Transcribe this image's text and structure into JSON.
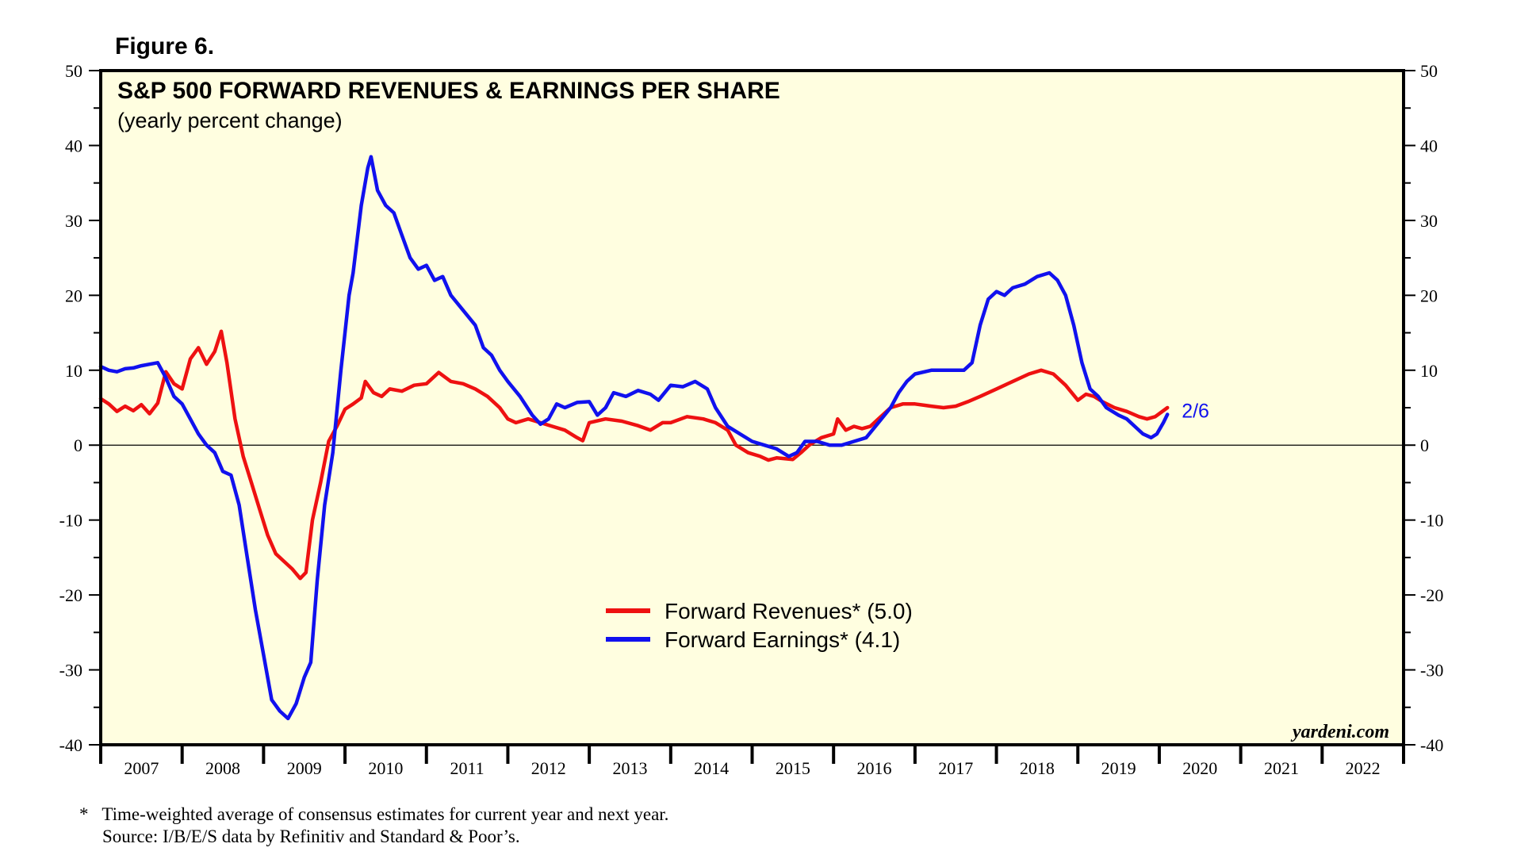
{
  "figure_label": "Figure 6.",
  "chart_data": {
    "type": "line",
    "title": "S&P 500 FORWARD REVENUES & EARNINGS PER SHARE",
    "subtitle": "(yearly percent change)",
    "xlabel": "",
    "ylabel": "",
    "xlim": [
      2007,
      2023
    ],
    "ylim": [
      -40,
      50
    ],
    "yticks": [
      -40,
      -30,
      -20,
      -10,
      0,
      10,
      20,
      30,
      40,
      50
    ],
    "ytick_labels": [
      "-40",
      "-30",
      "-20",
      "-10",
      "0",
      "10",
      "20",
      "30",
      "40",
      "50"
    ],
    "year_labels": [
      "2007",
      "2008",
      "2009",
      "2010",
      "2011",
      "2012",
      "2013",
      "2014",
      "2015",
      "2016",
      "2017",
      "2018",
      "2019",
      "2020",
      "2021",
      "2022"
    ],
    "grid": false,
    "zero_line": true,
    "background_color": "#fffee0",
    "legend_position": "lower-center",
    "series": [
      {
        "name": "Forward Revenues* (5.0)",
        "color": "#ee1111",
        "points": [
          [
            2007.0,
            6.2
          ],
          [
            2007.1,
            5.5
          ],
          [
            2007.2,
            4.5
          ],
          [
            2007.3,
            5.2
          ],
          [
            2007.4,
            4.6
          ],
          [
            2007.5,
            5.4
          ],
          [
            2007.6,
            4.2
          ],
          [
            2007.7,
            5.6
          ],
          [
            2007.8,
            9.8
          ],
          [
            2007.9,
            8.2
          ],
          [
            2008.0,
            7.5
          ],
          [
            2008.1,
            11.5
          ],
          [
            2008.2,
            13.0
          ],
          [
            2008.3,
            10.8
          ],
          [
            2008.4,
            12.5
          ],
          [
            2008.48,
            15.2
          ],
          [
            2008.55,
            11.0
          ],
          [
            2008.65,
            3.5
          ],
          [
            2008.75,
            -1.5
          ],
          [
            2008.85,
            -5.0
          ],
          [
            2008.95,
            -8.5
          ],
          [
            2009.05,
            -12.0
          ],
          [
            2009.15,
            -14.5
          ],
          [
            2009.25,
            -15.5
          ],
          [
            2009.35,
            -16.5
          ],
          [
            2009.45,
            -17.8
          ],
          [
            2009.52,
            -17.0
          ],
          [
            2009.6,
            -10.0
          ],
          [
            2009.7,
            -5.0
          ],
          [
            2009.8,
            0.5
          ],
          [
            2009.9,
            2.5
          ],
          [
            2010.0,
            4.8
          ],
          [
            2010.1,
            5.5
          ],
          [
            2010.2,
            6.3
          ],
          [
            2010.25,
            8.5
          ],
          [
            2010.35,
            7.0
          ],
          [
            2010.45,
            6.5
          ],
          [
            2010.55,
            7.5
          ],
          [
            2010.7,
            7.2
          ],
          [
            2010.85,
            8.0
          ],
          [
            2011.0,
            8.2
          ],
          [
            2011.15,
            9.7
          ],
          [
            2011.3,
            8.5
          ],
          [
            2011.45,
            8.2
          ],
          [
            2011.6,
            7.5
          ],
          [
            2011.75,
            6.5
          ],
          [
            2011.9,
            5.0
          ],
          [
            2012.0,
            3.5
          ],
          [
            2012.1,
            3.0
          ],
          [
            2012.25,
            3.5
          ],
          [
            2012.4,
            3.0
          ],
          [
            2012.55,
            2.5
          ],
          [
            2012.7,
            2.0
          ],
          [
            2012.85,
            1.0
          ],
          [
            2012.92,
            0.6
          ],
          [
            2013.0,
            3.0
          ],
          [
            2013.2,
            3.5
          ],
          [
            2013.4,
            3.2
          ],
          [
            2013.6,
            2.6
          ],
          [
            2013.75,
            2.0
          ],
          [
            2013.9,
            3.0
          ],
          [
            2014.0,
            3.0
          ],
          [
            2014.2,
            3.8
          ],
          [
            2014.4,
            3.5
          ],
          [
            2014.55,
            3.0
          ],
          [
            2014.7,
            2.0
          ],
          [
            2014.8,
            0.0
          ],
          [
            2014.95,
            -1.0
          ],
          [
            2015.1,
            -1.5
          ],
          [
            2015.2,
            -2.0
          ],
          [
            2015.3,
            -1.7
          ],
          [
            2015.4,
            -1.8
          ],
          [
            2015.5,
            -1.9
          ],
          [
            2015.6,
            -1.0
          ],
          [
            2015.7,
            0.0
          ],
          [
            2015.85,
            1.0
          ],
          [
            2016.0,
            1.5
          ],
          [
            2016.05,
            3.5
          ],
          [
            2016.15,
            2.0
          ],
          [
            2016.25,
            2.5
          ],
          [
            2016.35,
            2.2
          ],
          [
            2016.45,
            2.5
          ],
          [
            2016.55,
            3.5
          ],
          [
            2016.7,
            5.0
          ],
          [
            2016.85,
            5.5
          ],
          [
            2017.0,
            5.5
          ],
          [
            2017.2,
            5.2
          ],
          [
            2017.35,
            5.0
          ],
          [
            2017.5,
            5.2
          ],
          [
            2017.65,
            5.8
          ],
          [
            2017.8,
            6.5
          ],
          [
            2018.0,
            7.5
          ],
          [
            2018.2,
            8.5
          ],
          [
            2018.4,
            9.5
          ],
          [
            2018.55,
            10.0
          ],
          [
            2018.7,
            9.5
          ],
          [
            2018.85,
            8.0
          ],
          [
            2019.0,
            6.0
          ],
          [
            2019.1,
            6.8
          ],
          [
            2019.2,
            6.5
          ],
          [
            2019.3,
            5.8
          ],
          [
            2019.45,
            5.0
          ],
          [
            2019.6,
            4.5
          ],
          [
            2019.75,
            3.8
          ],
          [
            2019.85,
            3.5
          ],
          [
            2019.95,
            3.8
          ],
          [
            2020.1,
            5.0
          ]
        ]
      },
      {
        "name": "Forward Earnings* (4.1)",
        "color": "#1111ee",
        "points": [
          [
            2007.0,
            10.5
          ],
          [
            2007.1,
            10.0
          ],
          [
            2007.2,
            9.8
          ],
          [
            2007.3,
            10.2
          ],
          [
            2007.4,
            10.3
          ],
          [
            2007.5,
            10.6
          ],
          [
            2007.6,
            10.8
          ],
          [
            2007.7,
            11.0
          ],
          [
            2007.8,
            9.0
          ],
          [
            2007.9,
            6.5
          ],
          [
            2008.0,
            5.5
          ],
          [
            2008.1,
            3.5
          ],
          [
            2008.2,
            1.5
          ],
          [
            2008.3,
            0.0
          ],
          [
            2008.4,
            -1.0
          ],
          [
            2008.5,
            -3.5
          ],
          [
            2008.6,
            -4.0
          ],
          [
            2008.7,
            -8.0
          ],
          [
            2008.8,
            -15.0
          ],
          [
            2008.9,
            -22.0
          ],
          [
            2009.0,
            -28.0
          ],
          [
            2009.1,
            -34.0
          ],
          [
            2009.2,
            -35.5
          ],
          [
            2009.3,
            -36.5
          ],
          [
            2009.4,
            -34.5
          ],
          [
            2009.5,
            -31.0
          ],
          [
            2009.58,
            -29.0
          ],
          [
            2009.66,
            -18.0
          ],
          [
            2009.75,
            -8.0
          ],
          [
            2009.85,
            -1.0
          ],
          [
            2009.95,
            10.0
          ],
          [
            2010.05,
            20.0
          ],
          [
            2010.1,
            23.0
          ],
          [
            2010.2,
            32.0
          ],
          [
            2010.28,
            37.0
          ],
          [
            2010.32,
            38.5
          ],
          [
            2010.4,
            34.0
          ],
          [
            2010.5,
            32.0
          ],
          [
            2010.6,
            31.0
          ],
          [
            2010.7,
            28.0
          ],
          [
            2010.8,
            25.0
          ],
          [
            2010.9,
            23.5
          ],
          [
            2011.0,
            24.0
          ],
          [
            2011.1,
            22.0
          ],
          [
            2011.2,
            22.5
          ],
          [
            2011.3,
            20.0
          ],
          [
            2011.45,
            18.0
          ],
          [
            2011.6,
            16.0
          ],
          [
            2011.7,
            13.0
          ],
          [
            2011.8,
            12.0
          ],
          [
            2011.9,
            10.0
          ],
          [
            2012.0,
            8.5
          ],
          [
            2012.15,
            6.5
          ],
          [
            2012.3,
            4.0
          ],
          [
            2012.4,
            2.8
          ],
          [
            2012.5,
            3.5
          ],
          [
            2012.6,
            5.5
          ],
          [
            2012.7,
            5.0
          ],
          [
            2012.85,
            5.7
          ],
          [
            2013.0,
            5.8
          ],
          [
            2013.1,
            4.0
          ],
          [
            2013.2,
            5.0
          ],
          [
            2013.3,
            7.0
          ],
          [
            2013.45,
            6.5
          ],
          [
            2013.6,
            7.3
          ],
          [
            2013.75,
            6.8
          ],
          [
            2013.85,
            6.0
          ],
          [
            2014.0,
            8.0
          ],
          [
            2014.15,
            7.8
          ],
          [
            2014.3,
            8.5
          ],
          [
            2014.45,
            7.5
          ],
          [
            2014.55,
            5.0
          ],
          [
            2014.7,
            2.5
          ],
          [
            2014.85,
            1.5
          ],
          [
            2015.0,
            0.5
          ],
          [
            2015.15,
            0.0
          ],
          [
            2015.3,
            -0.5
          ],
          [
            2015.45,
            -1.5
          ],
          [
            2015.55,
            -1.0
          ],
          [
            2015.65,
            0.5
          ],
          [
            2015.8,
            0.5
          ],
          [
            2015.95,
            0.0
          ],
          [
            2016.1,
            0.0
          ],
          [
            2016.25,
            0.5
          ],
          [
            2016.4,
            1.0
          ],
          [
            2016.55,
            3.0
          ],
          [
            2016.7,
            5.0
          ],
          [
            2016.8,
            7.0
          ],
          [
            2016.9,
            8.5
          ],
          [
            2017.0,
            9.5
          ],
          [
            2017.2,
            10.0
          ],
          [
            2017.4,
            10.0
          ],
          [
            2017.6,
            10.0
          ],
          [
            2017.7,
            11.0
          ],
          [
            2017.8,
            16.0
          ],
          [
            2017.9,
            19.5
          ],
          [
            2018.0,
            20.5
          ],
          [
            2018.1,
            20.0
          ],
          [
            2018.2,
            21.0
          ],
          [
            2018.35,
            21.5
          ],
          [
            2018.5,
            22.5
          ],
          [
            2018.65,
            23.0
          ],
          [
            2018.75,
            22.0
          ],
          [
            2018.85,
            20.0
          ],
          [
            2018.95,
            16.0
          ],
          [
            2019.05,
            11.0
          ],
          [
            2019.15,
            7.5
          ],
          [
            2019.25,
            6.5
          ],
          [
            2019.35,
            5.0
          ],
          [
            2019.5,
            4.0
          ],
          [
            2019.6,
            3.5
          ],
          [
            2019.7,
            2.5
          ],
          [
            2019.8,
            1.5
          ],
          [
            2019.9,
            1.0
          ],
          [
            2019.97,
            1.5
          ],
          [
            2020.05,
            3.0
          ],
          [
            2020.1,
            4.1
          ]
        ]
      }
    ],
    "annotations": [
      {
        "text": "2/6",
        "x": 2020.1,
        "y": 4.1,
        "color": "#1111ee"
      }
    ],
    "source_mark": "yardeni.com"
  },
  "legend": [
    {
      "label": "Forward Revenues* (5.0)",
      "color": "#ee1111"
    },
    {
      "label": "Forward Earnings* (4.1)",
      "color": "#1111ee"
    }
  ],
  "footnotes": {
    "note": "*   Time-weighted average of consensus estimates for current year and next year.",
    "source": "Source: I/B/E/S data by Refinitiv and Standard & Poor’s."
  }
}
